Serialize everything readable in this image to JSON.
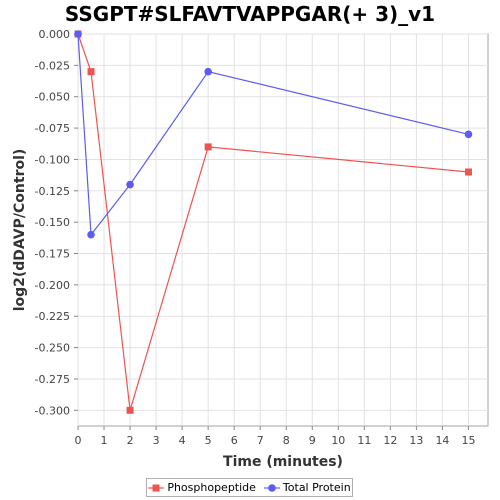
{
  "chart_data": {
    "type": "line",
    "title": "SSGPT#SLFAVTVAPPGAR(+ 3)_v1",
    "xlabel": "Time (minutes)",
    "ylabel": "log2(dDAVP/Control)",
    "xlim": [
      0,
      15.75
    ],
    "ylim": [
      -0.3125,
      0
    ],
    "x_ticks": [
      0,
      1,
      2,
      3,
      4,
      5,
      6,
      7,
      8,
      9,
      10,
      11,
      12,
      13,
      14,
      15
    ],
    "y_ticks": [
      0,
      -0.025,
      -0.05,
      -0.075,
      -0.1,
      -0.125,
      -0.15,
      -0.175,
      -0.2,
      -0.225,
      -0.25,
      -0.275,
      -0.3
    ],
    "y_tick_labels": [
      "0.000",
      "-0.025",
      "-0.050",
      "-0.075",
      "-0.100",
      "-0.125",
      "-0.150",
      "-0.175",
      "-0.200",
      "-0.225",
      "-0.250",
      "-0.275",
      "-0.300"
    ],
    "grid": true,
    "legend_position": "bottom",
    "series": [
      {
        "name": "Phosphopeptide",
        "color": "#ef5350",
        "marker": "square",
        "x": [
          0,
          0.5,
          2,
          5,
          15
        ],
        "y": [
          0,
          -0.03,
          -0.3,
          -0.09,
          -0.11
        ]
      },
      {
        "name": "Total Protein",
        "color": "#5c5cf0",
        "marker": "circle",
        "x": [
          0,
          0.5,
          2,
          5,
          15
        ],
        "y": [
          0,
          -0.16,
          -0.12,
          -0.03,
          -0.08
        ]
      }
    ]
  }
}
